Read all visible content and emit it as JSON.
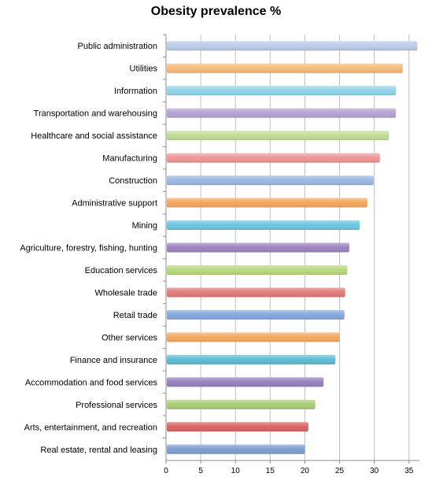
{
  "chart_data": {
    "type": "bar",
    "orientation": "horizontal",
    "title": "Obesity prevalence %",
    "xlabel": "",
    "ylabel": "",
    "xlim": [
      0,
      36.5
    ],
    "xticks": [
      0,
      5,
      10,
      15,
      20,
      25,
      30,
      35
    ],
    "grid": "vertical",
    "categories": [
      "Public administration",
      "Utilities",
      "Information",
      "Transportation and warehousing",
      "Healthcare and social assistance",
      "Manufacturing",
      "Construction",
      "Administrative support",
      "Mining",
      "Agriculture, forestry, fishing, hunting",
      "Education services",
      "Wholesale trade",
      "Retail trade",
      "Other services",
      "Finance and insurance",
      "Accommodation and food services",
      "Professional services",
      "Arts, entertainment, and recreation",
      "Real estate, rental and leasing"
    ],
    "values": [
      36.2,
      34.1,
      33.1,
      33.1,
      32.1,
      30.8,
      29.9,
      29.0,
      27.9,
      26.4,
      26.1,
      25.8,
      25.7,
      25.0,
      24.4,
      22.7,
      21.5,
      20.5,
      20.0
    ],
    "colors": [
      "#b9cbe6",
      "#f7b97a",
      "#8fd3e8",
      "#b4a1d2",
      "#c1dc95",
      "#ee9696",
      "#9cb7e3",
      "#f4a55c",
      "#6bc5df",
      "#9d83c2",
      "#b8d880",
      "#e27a7a",
      "#84a7de",
      "#f3a861",
      "#5ebad3",
      "#9581bd",
      "#a9ce74",
      "#d96464",
      "#7d9fcf"
    ],
    "colors_note_palette": "cycling office pastel palette"
  }
}
